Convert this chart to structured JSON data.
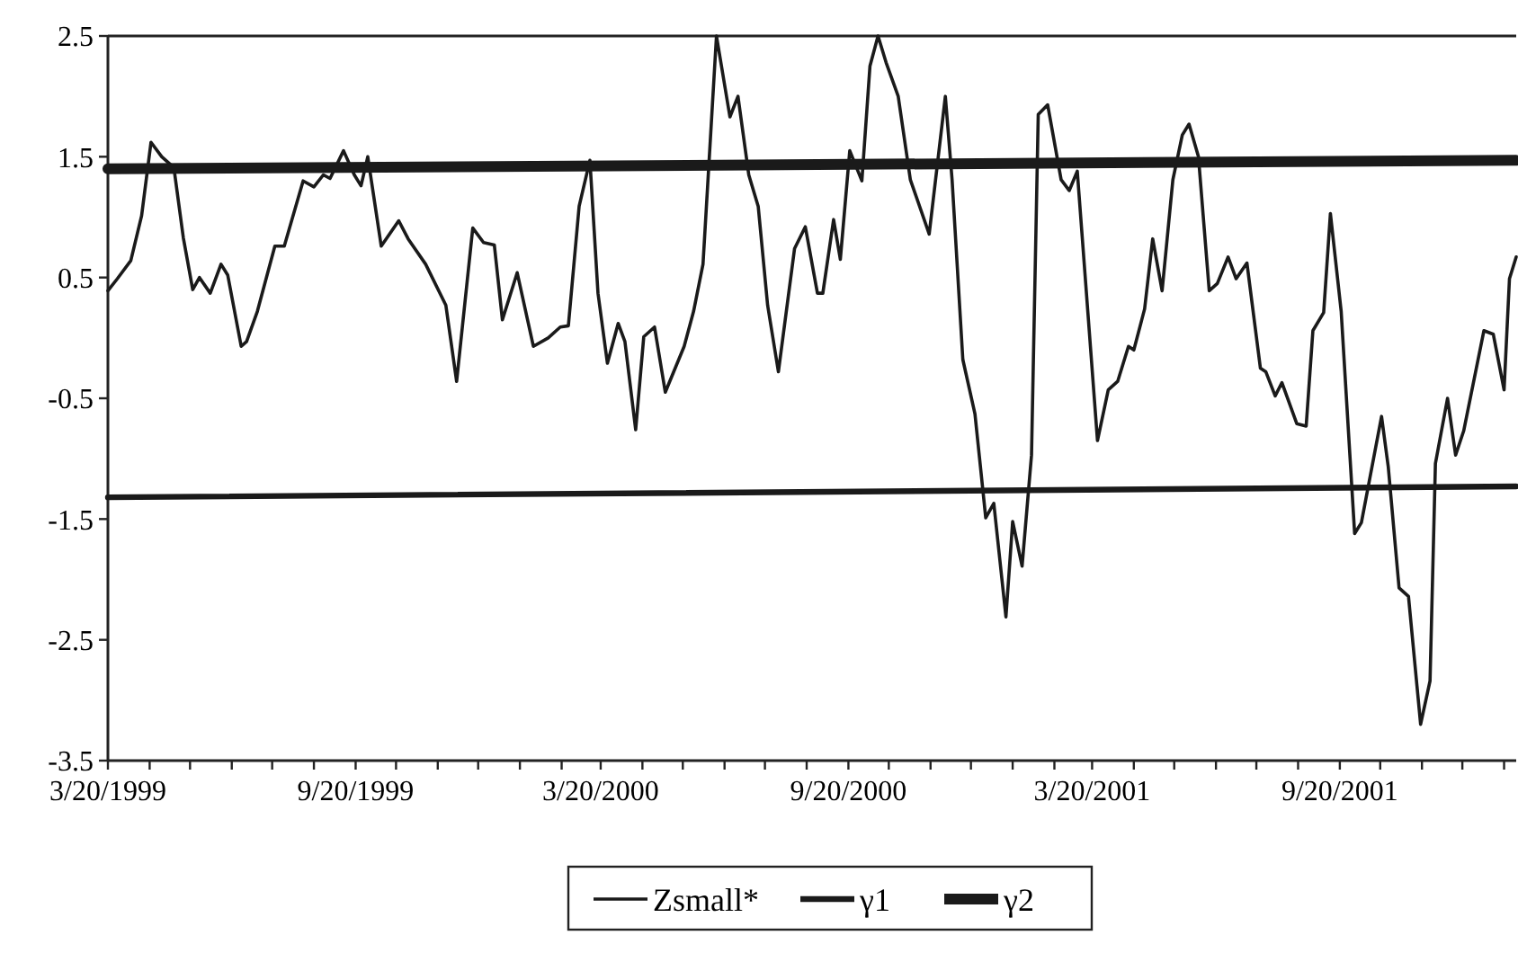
{
  "chart_data": {
    "type": "line",
    "x": [
      "1999-03-20",
      "1999-03-27",
      "1999-04-06",
      "1999-04-14",
      "1999-04-21",
      "1999-04-29",
      "1999-05-08",
      "1999-05-15",
      "1999-05-22",
      "1999-05-27",
      "1999-06-04",
      "1999-06-12",
      "1999-06-17",
      "1999-06-27",
      "1999-07-01",
      "1999-07-09",
      "1999-07-22",
      "1999-07-29",
      "1999-08-12",
      "1999-08-20",
      "1999-08-27",
      "1999-09-01",
      "1999-09-11",
      "1999-09-19",
      "1999-09-24",
      "1999-09-29",
      "1999-10-09",
      "1999-10-22",
      "1999-10-29",
      "1999-11-11",
      "1999-11-26",
      "1999-12-04",
      "1999-12-16",
      "1999-12-24",
      "2000-01-01",
      "2000-01-07",
      "2000-01-18",
      "2000-01-30",
      "2000-02-10",
      "2000-02-19",
      "2000-02-25",
      "2000-03-04",
      "2000-03-12",
      "2000-03-18",
      "2000-03-25",
      "2000-04-02",
      "2000-04-07",
      "2000-04-15",
      "2000-04-21",
      "2000-04-29",
      "2000-05-07",
      "2000-05-21",
      "2000-05-28",
      "2000-06-04",
      "2000-06-14",
      "2000-06-24",
      "2000-06-30",
      "2000-07-08",
      "2000-07-15",
      "2000-07-22",
      "2000-07-30",
      "2000-08-11",
      "2000-08-19",
      "2000-08-28",
      "2000-09-01",
      "2000-09-09",
      "2000-09-14",
      "2000-09-21",
      "2000-09-30",
      "2000-10-06",
      "2000-10-12",
      "2000-10-18",
      "2000-10-27",
      "2000-11-05",
      "2000-11-19",
      "2000-12-01",
      "2000-12-06",
      "2000-12-14",
      "2000-12-23",
      "2000-12-31",
      "2001-01-06",
      "2001-01-15",
      "2001-01-20",
      "2001-01-27",
      "2001-02-03",
      "2001-02-08",
      "2001-02-15",
      "2001-02-25",
      "2001-03-03",
      "2001-03-09",
      "2001-03-24",
      "2001-04-01",
      "2001-04-08",
      "2001-04-16",
      "2001-04-20",
      "2001-04-28",
      "2001-05-04",
      "2001-05-11",
      "2001-05-19",
      "2001-05-26",
      "2001-05-31",
      "2001-06-07",
      "2001-06-15",
      "2001-06-21",
      "2001-06-29",
      "2001-07-05",
      "2001-07-13",
      "2001-07-23",
      "2001-07-27",
      "2001-08-03",
      "2001-08-08",
      "2001-08-19",
      "2001-08-26",
      "2001-08-31",
      "2001-09-08",
      "2001-09-13",
      "2001-09-21",
      "2001-10-01",
      "2001-10-06",
      "2001-10-21",
      "2001-10-26",
      "2001-11-03",
      "2001-11-10",
      "2001-11-19",
      "2001-11-26",
      "2001-11-30",
      "2001-12-09",
      "2001-12-15",
      "2001-12-21",
      "2002-01-05",
      "2002-01-12",
      "2002-01-20",
      "2002-01-24",
      "2002-01-29"
    ],
    "series": [
      {
        "name": "Zsmall*",
        "color": "#1a1a1a",
        "values": [
          0.39,
          0.49,
          0.64,
          1.01,
          1.62,
          1.5,
          1.41,
          0.83,
          0.4,
          0.5,
          0.37,
          0.61,
          0.52,
          -0.07,
          -0.03,
          0.22,
          0.76,
          0.76,
          1.3,
          1.25,
          1.35,
          1.32,
          1.55,
          1.35,
          1.26,
          1.5,
          0.76,
          0.97,
          0.82,
          0.61,
          0.27,
          -0.36,
          0.91,
          0.79,
          0.77,
          0.15,
          0.54,
          -0.07,
          0,
          0.09,
          0.1,
          1.09,
          1.47,
          0.37,
          -0.21,
          0.12,
          -0.03,
          -0.76,
          0.01,
          0.09,
          -0.45,
          -0.07,
          0.22,
          0.61,
          2.5,
          1.83,
          2.0,
          1.35,
          1.09,
          0.27,
          -0.28,
          0.74,
          0.92,
          0.37,
          0.37,
          0.98,
          0.65,
          1.55,
          1.3,
          2.25,
          2.5,
          2.28,
          2.0,
          1.31,
          0.86,
          2.0,
          1.31,
          -0.18,
          -0.63,
          -1.49,
          -1.37,
          -2.31,
          -1.52,
          -1.89,
          -0.97,
          1.85,
          1.93,
          1.31,
          1.22,
          1.38,
          -0.85,
          -0.43,
          -0.36,
          -0.07,
          -0.1,
          0.24,
          0.82,
          0.39,
          1.31,
          1.68,
          1.77,
          1.5,
          0.39,
          0.45,
          0.67,
          0.49,
          0.62,
          -0.25,
          -0.28,
          -0.48,
          -0.37,
          -0.71,
          -0.73,
          0.06,
          0.21,
          1.03,
          0.22,
          -1.62,
          -1.53,
          -0.65,
          -1.07,
          -2.07,
          -2.14,
          -3.2,
          -2.84,
          -1.04,
          -0.5,
          -0.97,
          -0.77,
          0.06,
          0.03,
          -0.43,
          0.49,
          0.67
        ]
      },
      {
        "name": "γ1",
        "color": "#1a1a1a",
        "x": [
          "1999-03-20",
          "2002-01-29"
        ],
        "values": [
          -1.32,
          -1.23
        ]
      },
      {
        "name": "γ2",
        "color": "#1a1a1a",
        "x": [
          "1999-03-20",
          "2002-01-29"
        ],
        "values": [
          1.4,
          1.47
        ]
      }
    ],
    "xlim": [
      "1999-03-20",
      "2002-01-29"
    ],
    "xticks": [
      {
        "value": "1999-03-20",
        "label": "3/20/1999"
      },
      {
        "value": "1999-04-20",
        "label": null
      },
      {
        "value": "1999-05-20",
        "label": null
      },
      {
        "value": "1999-06-20",
        "label": null
      },
      {
        "value": "1999-07-20",
        "label": null
      },
      {
        "value": "1999-08-20",
        "label": null
      },
      {
        "value": "1999-09-20",
        "label": "9/20/1999"
      },
      {
        "value": "1999-10-20",
        "label": null
      },
      {
        "value": "1999-11-20",
        "label": null
      },
      {
        "value": "1999-12-20",
        "label": null
      },
      {
        "value": "2000-01-20",
        "label": null
      },
      {
        "value": "2000-02-20",
        "label": null
      },
      {
        "value": "2000-03-20",
        "label": "3/20/2000"
      },
      {
        "value": "2000-04-20",
        "label": null
      },
      {
        "value": "2000-05-20",
        "label": null
      },
      {
        "value": "2000-06-20",
        "label": null
      },
      {
        "value": "2000-07-20",
        "label": null
      },
      {
        "value": "2000-08-20",
        "label": null
      },
      {
        "value": "2000-09-20",
        "label": "9/20/2000"
      },
      {
        "value": "2000-10-20",
        "label": null
      },
      {
        "value": "2000-11-20",
        "label": null
      },
      {
        "value": "2000-12-20",
        "label": null
      },
      {
        "value": "2001-01-20",
        "label": null
      },
      {
        "value": "2001-02-20",
        "label": null
      },
      {
        "value": "2001-03-20",
        "label": "3/20/2001"
      },
      {
        "value": "2001-04-20",
        "label": null
      },
      {
        "value": "2001-05-20",
        "label": null
      },
      {
        "value": "2001-06-20",
        "label": null
      },
      {
        "value": "2001-07-20",
        "label": null
      },
      {
        "value": "2001-08-20",
        "label": null
      },
      {
        "value": "2001-09-20",
        "label": "9/20/2001"
      },
      {
        "value": "2001-10-20",
        "label": null
      },
      {
        "value": "2001-11-20",
        "label": null
      },
      {
        "value": "2001-12-20",
        "label": null
      },
      {
        "value": "2002-01-20",
        "label": null
      }
    ],
    "ylim": [
      -3.5,
      2.5
    ],
    "yticks": [
      2.5,
      1.5,
      0.5,
      -0.5,
      -1.5,
      -2.5,
      -3.5
    ],
    "grid": false,
    "legend": "bottom",
    "marker": "none",
    "line_style": "solid"
  }
}
